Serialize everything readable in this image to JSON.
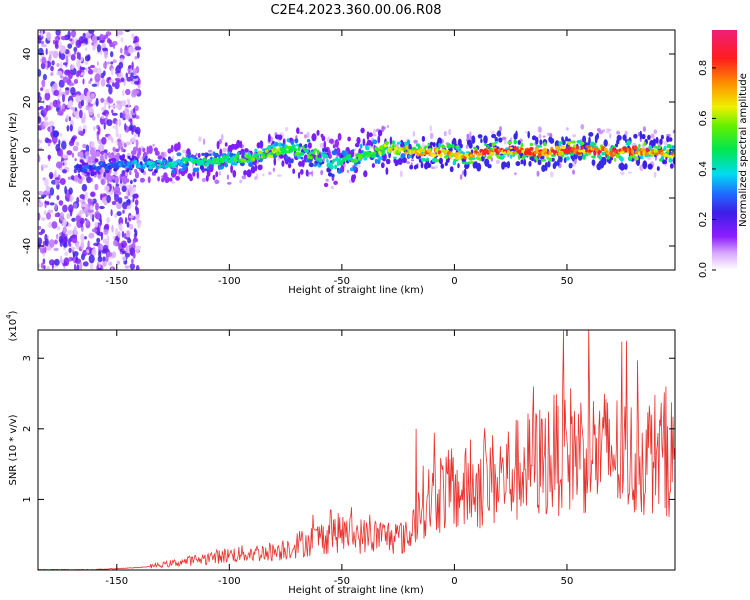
{
  "title": "C2E4.2023.360.00.06.R08",
  "chart_data": [
    {
      "type": "heatmap",
      "xlabel": "Height of straight line (km)",
      "ylabel": "Frequency (Hz)",
      "xlim": [
        -185,
        98
      ],
      "ylim": [
        -50,
        50
      ],
      "xticks": [
        -150,
        -100,
        -50,
        0,
        50
      ],
      "yticks": [
        -40,
        -20,
        0,
        20,
        40
      ],
      "colorbar": {
        "label": "Normalized spectral amplitude",
        "range": [
          0,
          0.95
        ],
        "ticks": [
          "0.0",
          "0.2",
          "0.4",
          "0.6",
          "0.8"
        ],
        "tick_values": [
          0.0,
          0.2,
          0.4,
          0.6,
          0.8
        ]
      },
      "ridge": {
        "x": [
          -165,
          -150,
          -140,
          -130,
          -120,
          -110,
          -100,
          -90,
          -80,
          -70,
          -60,
          -55,
          -50,
          -45,
          -40,
          -35,
          -30,
          -25,
          -20,
          -15,
          -10,
          -5,
          0,
          5,
          10,
          20,
          30,
          40,
          50,
          60,
          70,
          80,
          90,
          98
        ],
        "frequency": [
          -8,
          -6,
          -6,
          -6,
          -5,
          -5,
          -4,
          -3,
          -1,
          0,
          -2,
          -6,
          -4,
          -3,
          -2,
          -1,
          1,
          0,
          0,
          -1,
          -1,
          -1,
          -2,
          -3,
          -1,
          0,
          0,
          -1,
          0,
          0,
          -1,
          0,
          -1,
          -2
        ],
        "amplitude": [
          0.3,
          0.35,
          0.4,
          0.45,
          0.5,
          0.5,
          0.55,
          0.6,
          0.65,
          0.6,
          0.55,
          0.45,
          0.5,
          0.55,
          0.6,
          0.6,
          0.7,
          0.7,
          0.75,
          0.8,
          0.85,
          0.85,
          0.8,
          0.85,
          0.9,
          0.9,
          0.88,
          0.9,
          0.92,
          0.9,
          0.9,
          0.88,
          0.85,
          0.8
        ]
      },
      "noise_region_x": [
        -185,
        -140
      ]
    },
    {
      "type": "line",
      "xlabel": "Height of straight line (km)",
      "ylabel": "SNR (10 * v/v)",
      "yscale_label": "(x10",
      "yscale_exp": "4",
      "yscale_suffix": ")",
      "xlim": [
        -185,
        98
      ],
      "ylim": [
        0,
        3.4
      ],
      "xticks": [
        -150,
        -100,
        -50,
        0,
        50
      ],
      "yticks": [
        1,
        2,
        3
      ],
      "series": [
        {
          "name": "SNR",
          "color": "#e8322d",
          "x": [
            -185,
            -160,
            -140,
            -130,
            -120,
            -110,
            -100,
            -90,
            -80,
            -70,
            -60,
            -50,
            -40,
            -30,
            -20,
            -18,
            -15,
            -10,
            -5,
            0,
            10,
            20,
            30,
            40,
            50,
            60,
            70,
            80,
            90,
            98
          ],
          "values": [
            0.0,
            0.0,
            0.03,
            0.06,
            0.1,
            0.14,
            0.18,
            0.2,
            0.22,
            0.3,
            0.38,
            0.45,
            0.4,
            0.4,
            0.38,
            0.6,
            0.8,
            0.85,
            0.95,
            0.9,
            1.0,
            1.1,
            1.2,
            1.3,
            1.45,
            1.4,
            1.4,
            1.3,
            1.4,
            1.35
          ],
          "peaks": [
            [
              48.5,
              3.4
            ],
            [
              35,
              2.6
            ],
            [
              60,
              2.5
            ],
            [
              94,
              2.6
            ],
            [
              -17,
              2.0
            ],
            [
              -55,
              0.85
            ]
          ]
        }
      ]
    }
  ],
  "colors": {
    "line": "#e8322d",
    "background": "#ffffff"
  }
}
